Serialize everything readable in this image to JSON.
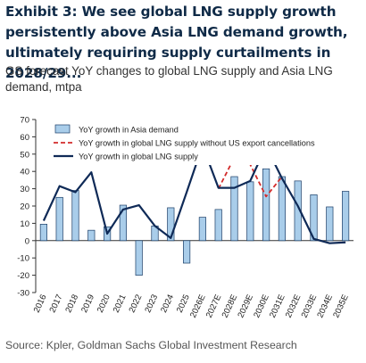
{
  "header": {
    "title": "Exhibit 3: We see global LNG supply growth persistently above Asia LNG demand growth, ultimately requiring supply curtailments in 2028/29...",
    "subtitle": "GS forecast YoY changes to global LNG supply and Asia LNG demand, mtpa"
  },
  "footer": {
    "source": "Source: Kpler, Goldman Sachs Global Investment Research"
  },
  "colors": {
    "bar_fill": "#a9cdea",
    "bar_stroke": "#1b3d66",
    "supply_line": "#0f2a57",
    "supply_ex_us_line": "#d22b2b"
  },
  "chart_data": {
    "type": "bar",
    "categories": [
      "2016",
      "2017",
      "2018",
      "2019",
      "2020",
      "2021",
      "2022",
      "2023",
      "2024",
      "2025",
      "2026E",
      "2027E",
      "2028E",
      "2029E",
      "2030E",
      "2031E",
      "2032E",
      "2033E",
      "2034E",
      "2035E"
    ],
    "ylim": [
      -30,
      70
    ],
    "yticks": [
      -30,
      -20,
      -10,
      0,
      10,
      20,
      30,
      40,
      50,
      60,
      70
    ],
    "grid": false,
    "legend_position": "top",
    "series": [
      {
        "name": "YoY growth in Asia demand",
        "kind": "bar",
        "values": [
          9.5,
          25,
          29,
          6,
          8,
          20.5,
          -20,
          8.5,
          19,
          -13,
          13.5,
          18,
          37,
          34,
          41.5,
          37,
          34.5,
          26.5,
          19.5,
          28.5
        ]
      },
      {
        "name": "YoY growth in global LNG supply without US export cancellations",
        "kind": "line",
        "style": "dashed",
        "values": [
          null,
          null,
          null,
          null,
          null,
          null,
          null,
          null,
          null,
          null,
          null,
          30,
          48,
          44,
          25.5,
          37,
          null,
          null,
          null,
          null
        ]
      },
      {
        "name": "YoY growth in global LNG supply",
        "kind": "line",
        "style": "solid",
        "values": [
          11.5,
          31.5,
          28,
          39.5,
          4,
          18,
          20.5,
          8.5,
          1.5,
          28,
          55,
          30.5,
          30.5,
          34.5,
          54.5,
          36,
          20,
          1,
          -1.5,
          -1
        ]
      }
    ]
  }
}
